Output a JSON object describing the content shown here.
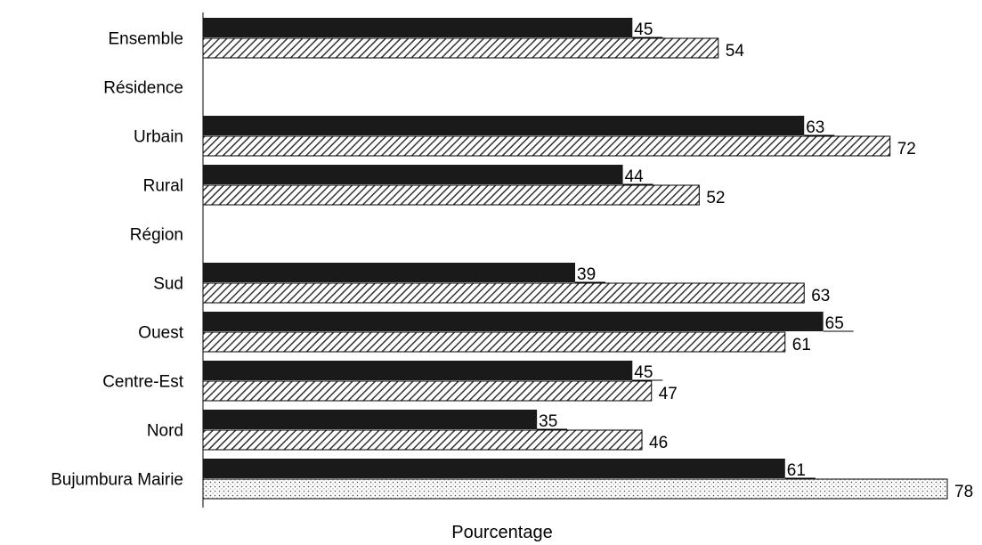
{
  "chart_data": {
    "type": "bar",
    "orientation": "horizontal",
    "xlabel": "Pourcentage",
    "ylabel": "",
    "title": "",
    "xlim": [
      0,
      78
    ],
    "grid": false,
    "legend": "none",
    "categories": [
      "Ensemble",
      "Résidence",
      "Urbain",
      "Rural",
      "Région",
      "Sud",
      "Ouest",
      "Centre-Est",
      "Nord",
      "Bujumbura Mairie"
    ],
    "series": [
      {
        "values": [
          45,
          null,
          63,
          44,
          null,
          39,
          65,
          45,
          35,
          61
        ],
        "color": "#1a1a1a",
        "pattern": "solid"
      },
      {
        "values": [
          54,
          null,
          72,
          52,
          null,
          63,
          61,
          47,
          46,
          78
        ],
        "color": "#555555",
        "pattern": "diagonal-hatch",
        "last_bar_pattern": "dotted"
      }
    ]
  }
}
